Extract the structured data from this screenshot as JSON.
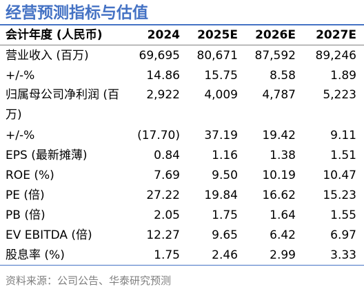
{
  "title": "经营预测指标与估值",
  "table": {
    "headers": [
      "会计年度 (人民币)",
      "2024",
      "2025E",
      "2026E",
      "2027E"
    ],
    "rows": [
      {
        "label": "营业收入 (百万)",
        "values": [
          "69,695",
          "80,671",
          "87,592",
          "89,246"
        ]
      },
      {
        "label": "+/-%",
        "values": [
          "14.86",
          "15.75",
          "8.58",
          "1.89"
        ]
      },
      {
        "label": "归属母公司净利润 (百万)",
        "values": [
          "2,922",
          "4,009",
          "4,787",
          "5,223"
        ]
      },
      {
        "label": "+/-%",
        "values": [
          "(17.70)",
          "37.19",
          "19.42",
          "9.11"
        ]
      },
      {
        "label": "EPS (最新摊薄)",
        "values": [
          "0.84",
          "1.16",
          "1.38",
          "1.51"
        ]
      },
      {
        "label": "ROE (%)",
        "values": [
          "7.69",
          "9.50",
          "10.19",
          "10.47"
        ]
      },
      {
        "label": "PE (倍)",
        "values": [
          "27.22",
          "19.84",
          "16.62",
          "15.23"
        ]
      },
      {
        "label": "PB (倍)",
        "values": [
          "2.05",
          "1.75",
          "1.64",
          "1.55"
        ]
      },
      {
        "label": "EV EBITDA (倍)",
        "values": [
          "12.27",
          "9.65",
          "6.42",
          "6.97"
        ]
      },
      {
        "label": "股息率 (%)",
        "values": [
          "1.75",
          "2.46",
          "2.99",
          "3.33"
        ]
      }
    ]
  },
  "source": "资料来源：公司公告、华泰研究预测"
}
